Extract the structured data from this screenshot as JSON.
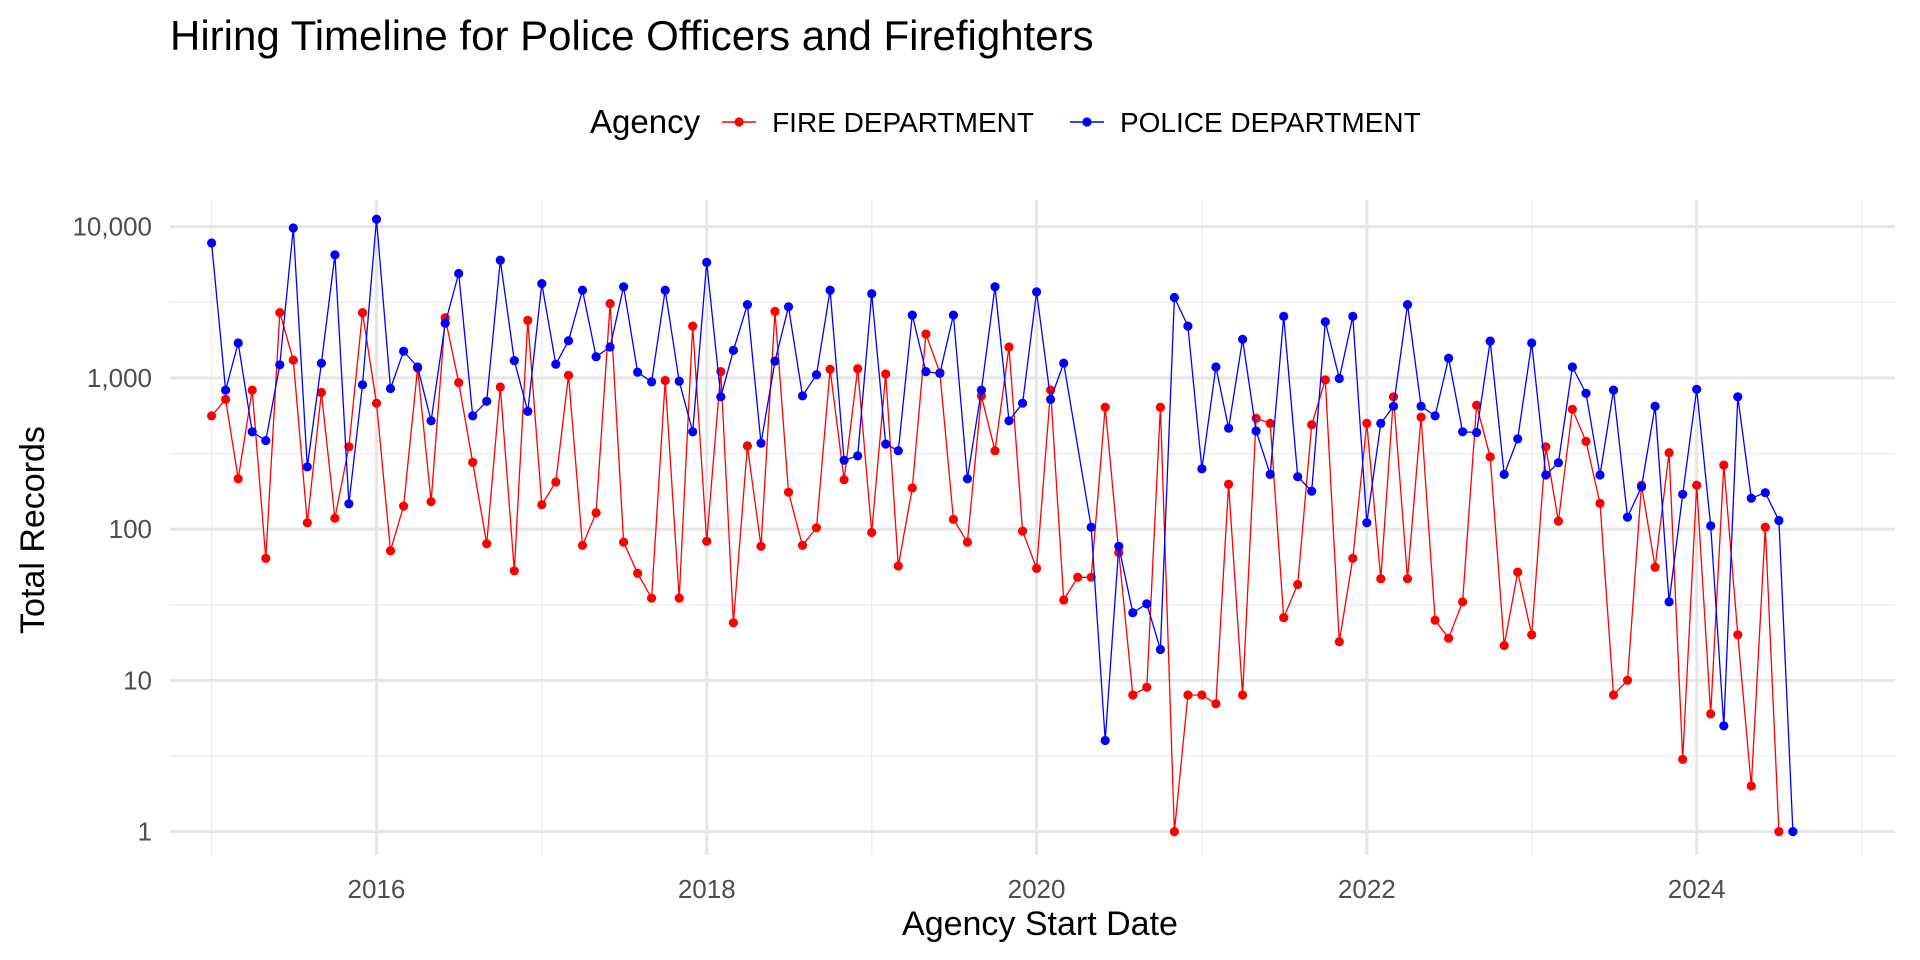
{
  "chart_data": {
    "type": "line",
    "title": "Hiring Timeline for Police Officers and Firefighters",
    "xlabel": "Agency Start Date",
    "ylabel": "Total Records",
    "y_scale": "log10",
    "ylim": [
      0.7,
      15000
    ],
    "xlim": [
      "2014-10-01",
      "2025-03-15"
    ],
    "y_ticks": [
      1,
      10,
      100,
      1000,
      10000
    ],
    "y_tick_labels": [
      "1",
      "10",
      "100",
      "1,000",
      "10,000"
    ],
    "x_ticks": [
      "2016-01-01",
      "2018-01-01",
      "2020-01-01",
      "2022-01-01",
      "2024-01-01"
    ],
    "x_tick_labels": [
      "2016",
      "2018",
      "2020",
      "2022",
      "2024"
    ],
    "grid": true,
    "legend": {
      "title": "Agency",
      "position": "top"
    },
    "series": [
      {
        "name": "FIRE DEPARTMENT",
        "color": "#ff0000",
        "points": [
          [
            "2015-01-01",
            560
          ],
          [
            "2015-02-01",
            720
          ],
          [
            "2015-03-01",
            215
          ],
          [
            "2015-04-01",
            830
          ],
          [
            "2015-05-01",
            64
          ],
          [
            "2015-06-01",
            2700
          ],
          [
            "2015-07-01",
            1310
          ],
          [
            "2015-08-01",
            110
          ],
          [
            "2015-09-01",
            800
          ],
          [
            "2015-10-01",
            118
          ],
          [
            "2015-11-01",
            350
          ],
          [
            "2015-12-01",
            2700
          ],
          [
            "2016-01-01",
            680
          ],
          [
            "2016-02-01",
            72
          ],
          [
            "2016-03-01",
            142
          ],
          [
            "2016-04-01",
            1160
          ],
          [
            "2016-05-01",
            152
          ],
          [
            "2016-06-01",
            2500
          ],
          [
            "2016-07-01",
            930
          ],
          [
            "2016-08-01",
            276
          ],
          [
            "2016-09-01",
            80
          ],
          [
            "2016-10-01",
            870
          ],
          [
            "2016-11-01",
            53
          ],
          [
            "2016-12-01",
            2400
          ],
          [
            "2017-01-01",
            145
          ],
          [
            "2017-02-01",
            205
          ],
          [
            "2017-03-01",
            1040
          ],
          [
            "2017-04-01",
            78
          ],
          [
            "2017-05-01",
            128
          ],
          [
            "2017-06-01",
            3100
          ],
          [
            "2017-07-01",
            82
          ],
          [
            "2017-08-01",
            51
          ],
          [
            "2017-09-01",
            35
          ],
          [
            "2017-10-01",
            960
          ],
          [
            "2017-11-01",
            35
          ],
          [
            "2017-12-01",
            2200
          ],
          [
            "2018-01-01",
            83
          ],
          [
            "2018-02-01",
            1100
          ],
          [
            "2018-03-01",
            24
          ],
          [
            "2018-04-01",
            355
          ],
          [
            "2018-05-01",
            77
          ],
          [
            "2018-06-01",
            2750
          ],
          [
            "2018-07-01",
            175
          ],
          [
            "2018-08-01",
            78
          ],
          [
            "2018-09-01",
            102
          ],
          [
            "2018-10-01",
            1140
          ],
          [
            "2018-11-01",
            212
          ],
          [
            "2018-12-01",
            1150
          ],
          [
            "2019-01-01",
            95
          ],
          [
            "2019-02-01",
            1060
          ],
          [
            "2019-03-01",
            57
          ],
          [
            "2019-04-01",
            187
          ],
          [
            "2019-05-01",
            1950
          ],
          [
            "2019-06-01",
            1080
          ],
          [
            "2019-07-01",
            116
          ],
          [
            "2019-08-01",
            82
          ],
          [
            "2019-09-01",
            760
          ],
          [
            "2019-10-01",
            330
          ],
          [
            "2019-11-01",
            1600
          ],
          [
            "2019-12-01",
            97
          ],
          [
            "2020-01-01",
            55
          ],
          [
            "2020-02-01",
            830
          ],
          [
            "2020-03-01",
            34
          ],
          [
            "2020-04-01",
            48
          ],
          [
            "2020-05-01",
            48
          ],
          [
            "2020-06-01",
            640
          ],
          [
            "2020-07-01",
            70
          ],
          [
            "2020-08-01",
            8
          ],
          [
            "2020-09-01",
            9
          ],
          [
            "2020-10-01",
            640
          ],
          [
            "2020-11-01",
            1
          ],
          [
            "2020-12-01",
            8
          ],
          [
            "2021-01-01",
            8
          ],
          [
            "2021-02-01",
            7
          ],
          [
            "2021-03-01",
            198
          ],
          [
            "2021-04-01",
            8
          ],
          [
            "2021-05-01",
            540
          ],
          [
            "2021-06-01",
            500
          ],
          [
            "2021-07-01",
            26
          ],
          [
            "2021-08-01",
            43
          ],
          [
            "2021-09-01",
            490
          ],
          [
            "2021-10-01",
            970
          ],
          [
            "2021-11-01",
            18
          ],
          [
            "2021-12-01",
            64
          ],
          [
            "2022-01-01",
            500
          ],
          [
            "2022-02-01",
            47
          ],
          [
            "2022-03-01",
            750
          ],
          [
            "2022-04-01",
            47
          ],
          [
            "2022-05-01",
            550
          ],
          [
            "2022-06-01",
            25
          ],
          [
            "2022-07-01",
            19
          ],
          [
            "2022-08-01",
            33
          ],
          [
            "2022-09-01",
            660
          ],
          [
            "2022-10-01",
            300
          ],
          [
            "2022-11-01",
            17
          ],
          [
            "2022-12-01",
            52
          ],
          [
            "2023-01-01",
            20
          ],
          [
            "2023-02-01",
            350
          ],
          [
            "2023-03-01",
            113
          ],
          [
            "2023-04-01",
            620
          ],
          [
            "2023-05-01",
            380
          ],
          [
            "2023-06-01",
            148
          ],
          [
            "2023-07-01",
            8
          ],
          [
            "2023-08-01",
            10
          ],
          [
            "2023-09-01",
            195
          ],
          [
            "2023-10-01",
            56
          ],
          [
            "2023-11-01",
            320
          ],
          [
            "2023-12-01",
            3
          ],
          [
            "2024-01-01",
            195
          ],
          [
            "2024-02-01",
            6
          ],
          [
            "2024-03-01",
            265
          ],
          [
            "2024-04-01",
            20
          ],
          [
            "2024-05-01",
            2
          ],
          [
            "2024-06-01",
            103
          ],
          [
            "2024-07-01",
            1
          ]
        ]
      },
      {
        "name": "POLICE DEPARTMENT",
        "color": "#0000ff",
        "points": [
          [
            "2015-01-01",
            7800
          ],
          [
            "2015-02-01",
            830
          ],
          [
            "2015-03-01",
            1700
          ],
          [
            "2015-04-01",
            440
          ],
          [
            "2015-05-01",
            385
          ],
          [
            "2015-06-01",
            1220
          ],
          [
            "2015-07-01",
            9800
          ],
          [
            "2015-08-01",
            258
          ],
          [
            "2015-09-01",
            1250
          ],
          [
            "2015-10-01",
            6500
          ],
          [
            "2015-11-01",
            147
          ],
          [
            "2015-12-01",
            900
          ],
          [
            "2016-01-01",
            11200
          ],
          [
            "2016-02-01",
            850
          ],
          [
            "2016-03-01",
            1500
          ],
          [
            "2016-04-01",
            1180
          ],
          [
            "2016-05-01",
            520
          ],
          [
            "2016-06-01",
            2300
          ],
          [
            "2016-07-01",
            4900
          ],
          [
            "2016-08-01",
            560
          ],
          [
            "2016-09-01",
            700
          ],
          [
            "2016-10-01",
            6000
          ],
          [
            "2016-11-01",
            1300
          ],
          [
            "2016-12-01",
            600
          ],
          [
            "2017-01-01",
            4200
          ],
          [
            "2017-02-01",
            1230
          ],
          [
            "2017-03-01",
            1760
          ],
          [
            "2017-04-01",
            3800
          ],
          [
            "2017-05-01",
            1380
          ],
          [
            "2017-06-01",
            1600
          ],
          [
            "2017-07-01",
            4000
          ],
          [
            "2017-08-01",
            1090
          ],
          [
            "2017-09-01",
            940
          ],
          [
            "2017-10-01",
            3800
          ],
          [
            "2017-11-01",
            950
          ],
          [
            "2017-12-01",
            440
          ],
          [
            "2018-01-01",
            5800
          ],
          [
            "2018-02-01",
            750
          ],
          [
            "2018-03-01",
            1520
          ],
          [
            "2018-04-01",
            3050
          ],
          [
            "2018-05-01",
            370
          ],
          [
            "2018-06-01",
            1290
          ],
          [
            "2018-07-01",
            2950
          ],
          [
            "2018-08-01",
            760
          ],
          [
            "2018-09-01",
            1050
          ],
          [
            "2018-10-01",
            3800
          ],
          [
            "2018-11-01",
            285
          ],
          [
            "2018-12-01",
            305
          ],
          [
            "2019-01-01",
            3600
          ],
          [
            "2019-02-01",
            365
          ],
          [
            "2019-03-01",
            330
          ],
          [
            "2019-04-01",
            2600
          ],
          [
            "2019-05-01",
            1100
          ],
          [
            "2019-06-01",
            1070
          ],
          [
            "2019-07-01",
            2600
          ],
          [
            "2019-08-01",
            215
          ],
          [
            "2019-09-01",
            830
          ],
          [
            "2019-10-01",
            4000
          ],
          [
            "2019-11-01",
            520
          ],
          [
            "2019-12-01",
            680
          ],
          [
            "2020-01-01",
            3700
          ],
          [
            "2020-02-01",
            720
          ],
          [
            "2020-03-01",
            1250
          ],
          [
            "2020-05-01",
            103
          ],
          [
            "2020-06-01",
            4
          ],
          [
            "2020-07-01",
            77
          ],
          [
            "2020-08-01",
            28
          ],
          [
            "2020-09-01",
            32
          ],
          [
            "2020-10-01",
            16
          ],
          [
            "2020-11-01",
            3400
          ],
          [
            "2020-12-01",
            2200
          ],
          [
            "2021-01-01",
            250
          ],
          [
            "2021-02-01",
            1180
          ],
          [
            "2021-03-01",
            465
          ],
          [
            "2021-04-01",
            1800
          ],
          [
            "2021-05-01",
            445
          ],
          [
            "2021-06-01",
            230
          ],
          [
            "2021-07-01",
            2550
          ],
          [
            "2021-08-01",
            222
          ],
          [
            "2021-09-01",
            178
          ],
          [
            "2021-10-01",
            2350
          ],
          [
            "2021-11-01",
            990
          ],
          [
            "2021-12-01",
            2550
          ],
          [
            "2022-01-01",
            110
          ],
          [
            "2022-02-01",
            500
          ],
          [
            "2022-03-01",
            650
          ],
          [
            "2022-04-01",
            3050
          ],
          [
            "2022-05-01",
            650
          ],
          [
            "2022-06-01",
            560
          ],
          [
            "2022-07-01",
            1350
          ],
          [
            "2022-08-01",
            440
          ],
          [
            "2022-09-01",
            435
          ],
          [
            "2022-10-01",
            1750
          ],
          [
            "2022-11-01",
            230
          ],
          [
            "2022-12-01",
            395
          ],
          [
            "2023-01-01",
            1700
          ],
          [
            "2023-02-01",
            228
          ],
          [
            "2023-03-01",
            275
          ],
          [
            "2023-04-01",
            1180
          ],
          [
            "2023-05-01",
            790
          ],
          [
            "2023-06-01",
            228
          ],
          [
            "2023-07-01",
            830
          ],
          [
            "2023-08-01",
            120
          ],
          [
            "2023-09-01",
            190
          ],
          [
            "2023-10-01",
            650
          ],
          [
            "2023-11-01",
            33
          ],
          [
            "2023-12-01",
            170
          ],
          [
            "2024-01-01",
            840
          ],
          [
            "2024-02-01",
            105
          ],
          [
            "2024-03-01",
            5
          ],
          [
            "2024-04-01",
            750
          ],
          [
            "2024-05-01",
            160
          ],
          [
            "2024-06-01",
            174
          ],
          [
            "2024-07-01",
            114
          ],
          [
            "2024-08-01",
            1
          ]
        ]
      }
    ]
  }
}
